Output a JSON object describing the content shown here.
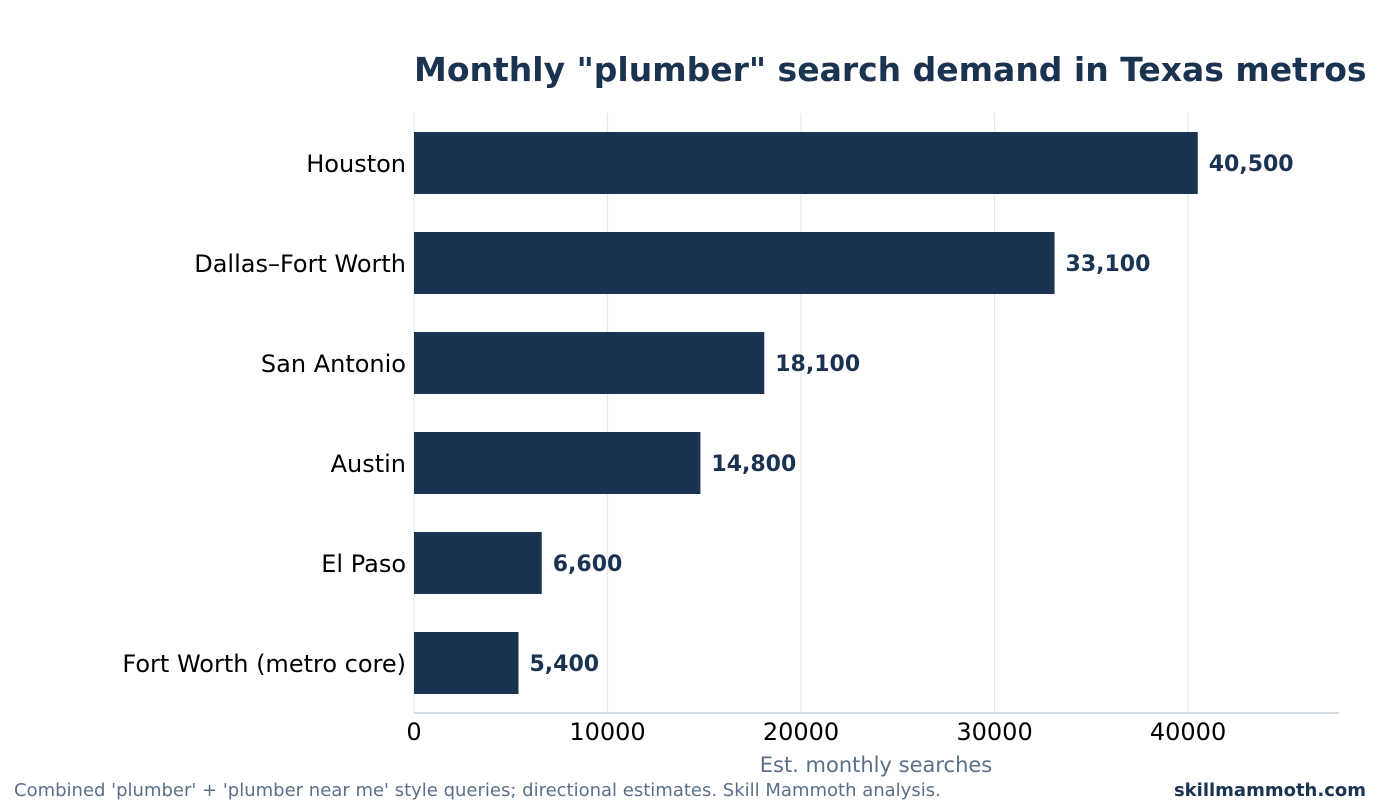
{
  "chart_data": {
    "type": "bar",
    "orientation": "horizontal",
    "title": "Monthly \"plumber\" search demand in Texas metros",
    "xlabel": "Est. monthly searches",
    "ylabel": "",
    "categories": [
      "Houston",
      "Dallas–Fort Worth",
      "San Antonio",
      "Austin",
      "El Paso",
      "Fort Worth (metro core)"
    ],
    "values": [
      40500,
      33100,
      18100,
      14800,
      6600,
      5400
    ],
    "value_labels": [
      "40,500",
      "33,100",
      "18,100",
      "14,800",
      "6,600",
      "5,400"
    ],
    "xlim": [
      0,
      47800
    ],
    "xticks": [
      0,
      10000,
      20000,
      30000,
      40000
    ],
    "xtick_labels": [
      "0",
      "10000",
      "20000",
      "30000",
      "40000"
    ],
    "grid": "vertical",
    "bar_color": "#1a3350"
  },
  "footer": {
    "note": "Combined 'plumber' + 'plumber near me' style queries; directional estimates. Skill Mammoth analysis.",
    "brand": "skillmammoth.com"
  }
}
